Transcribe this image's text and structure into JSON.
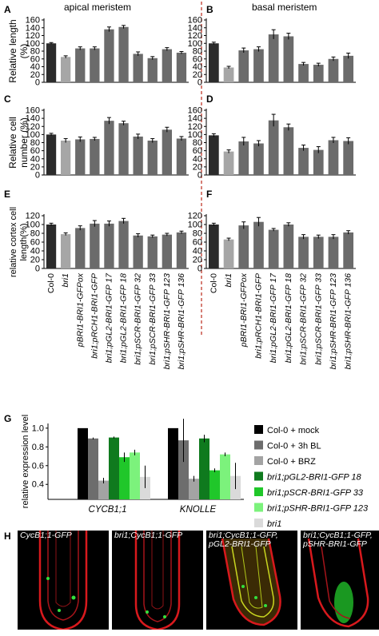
{
  "headers": {
    "apical": "apical meristem",
    "basal": "basal meristem"
  },
  "panel_letters": [
    "A",
    "B",
    "C",
    "D",
    "E",
    "F",
    "G",
    "H"
  ],
  "chart_data": [
    {
      "panel": "A",
      "type": "bar",
      "region": "apical meristem",
      "ylabel": "Relative length (%)",
      "ylim": [
        0,
        160
      ],
      "yticks": [
        0,
        20,
        40,
        60,
        80,
        100,
        120,
        140,
        160
      ],
      "categories": [
        "Col-0",
        "bri1",
        "pBRI1-BRI1-GFPox",
        "bri1;pRCH1-BRI1-GFP",
        "bri1;pGL2-BRI1-GFP 17",
        "bri1;pGL2-BRI1-GFP 18",
        "bri1;pSCR-BRI1-GFP 32",
        "bri1;pSCR-BRI1-GFP 33",
        "bri1;pSHR-BRI1-GFP 123",
        "bri1;pSHR-BRI1-GFP 136"
      ],
      "values": [
        100,
        65,
        87,
        87,
        136,
        142,
        73,
        62,
        85,
        76
      ],
      "errors": [
        2,
        3,
        4,
        4,
        6,
        4,
        5,
        4,
        4,
        3
      ]
    },
    {
      "panel": "B",
      "type": "bar",
      "region": "basal meristem",
      "ylabel": "",
      "ylim": [
        0,
        160
      ],
      "yticks": [
        0,
        20,
        40,
        60,
        80,
        100,
        120,
        140,
        160
      ],
      "categories": [
        "Col-0",
        "bri1",
        "pBRI1-BRI1-GFPox",
        "bri1;pRCH1-BRI1-GFP",
        "bri1;pGL2-BRI1-GFP 17",
        "bri1;pGL2-BRI1-GFP 18",
        "bri1;pSCR-BRI1-GFP 32",
        "bri1;pSCR-BRI1-GFP 33",
        "bri1;pSHR-BRI1-GFP 123",
        "bri1;pSHR-BRI1-GFP 136"
      ],
      "values": [
        100,
        38,
        82,
        85,
        123,
        118,
        47,
        45,
        60,
        68
      ],
      "errors": [
        3,
        3,
        6,
        6,
        12,
        8,
        4,
        4,
        5,
        7
      ]
    },
    {
      "panel": "C",
      "type": "bar",
      "region": "apical meristem",
      "ylabel": "Relative cell number (%)",
      "ylim": [
        0,
        160
      ],
      "yticks": [
        0,
        20,
        40,
        60,
        80,
        100,
        120,
        140,
        160
      ],
      "categories": [
        "Col-0",
        "bri1",
        "pBRI1-BRI1-GFPox",
        "bri1;pRCH1-BRI1-GFP",
        "bri1;pGL2-BRI1-GFP 17",
        "bri1;pGL2-BRI1-GFP 18",
        "bri1;pSCR-BRI1-GFP 32",
        "bri1;pSCR-BRI1-GFP 33",
        "bri1;pSHR-BRI1-GFP 123",
        "bri1;pSHR-BRI1-GFP 136"
      ],
      "values": [
        100,
        85,
        88,
        89,
        134,
        128,
        95,
        85,
        112,
        90
      ],
      "errors": [
        3,
        5,
        6,
        4,
        8,
        5,
        6,
        5,
        6,
        5
      ]
    },
    {
      "panel": "D",
      "type": "bar",
      "region": "basal meristem",
      "ylabel": "",
      "ylim": [
        0,
        160
      ],
      "yticks": [
        0,
        20,
        40,
        60,
        80,
        100,
        120,
        140,
        160
      ],
      "categories": [
        "Col-0",
        "bri1",
        "pBRI1-BRI1-GFPox",
        "bri1;pRCH1-BRI1-GFP",
        "bri1;pGL2-BRI1-GFP 17",
        "bri1;pGL2-BRI1-GFP 18",
        "bri1;pSCR-BRI1-GFP 32",
        "bri1;pSCR-BRI1-GFP 33",
        "bri1;pSHR-BRI1-GFP 123",
        "bri1;pSHR-BRI1-GFP 136"
      ],
      "values": [
        98,
        58,
        83,
        78,
        135,
        118,
        67,
        62,
        86,
        84
      ],
      "errors": [
        4,
        4,
        10,
        7,
        15,
        8,
        7,
        8,
        7,
        8
      ]
    },
    {
      "panel": "E",
      "type": "bar",
      "region": "apical meristem",
      "ylabel": "relative cortex cell length(%)",
      "ylim": [
        0,
        120
      ],
      "yticks": [
        0,
        20,
        40,
        60,
        80,
        100,
        120
      ],
      "categories": [
        "Col-0",
        "bri1",
        "pBRI1-BRI1-GFPox",
        "bri1;pRCH1-BRI1-GFP",
        "bri1;pGL2-BRI1-GFP 17",
        "bri1;pGL2-BRI1-GFP 18",
        "bri1;pSCR-BRI1-GFP 32",
        "bri1;pSCR-BRI1-GFP 33",
        "bri1;pSHR-BRI1-GFP 123",
        "bri1;pSHR-BRI1-GFP 136"
      ],
      "values": [
        100,
        78,
        92,
        102,
        102,
        108,
        75,
        73,
        77,
        82
      ],
      "errors": [
        3,
        3,
        5,
        7,
        6,
        6,
        4,
        3,
        3,
        3
      ]
    },
    {
      "panel": "F",
      "type": "bar",
      "region": "basal meristem",
      "ylabel": "",
      "ylim": [
        0,
        120
      ],
      "yticks": [
        0,
        20,
        40,
        60,
        80,
        100,
        120
      ],
      "categories": [
        "Col-0",
        "bri1",
        "pBRI1-BRI1-GFPox",
        "bri1;pRCH1-BRI1-GFP",
        "bri1;pGL2-BRI1-GFP 17",
        "bri1;pGL2-BRI1-GFP 18",
        "bri1;pSCR-BRI1-GFP 32",
        "bri1;pSCR-BRI1-GFP 33",
        "bri1;pSHR-BRI1-GFP 123",
        "bri1;pSHR-BRI1-GFP 136"
      ],
      "values": [
        100,
        66,
        98,
        106,
        88,
        100,
        72,
        72,
        72,
        82
      ],
      "errors": [
        3,
        3,
        8,
        10,
        3,
        4,
        5,
        4,
        5,
        4
      ]
    },
    {
      "panel": "G",
      "type": "bar",
      "ylabel": "relative expression level",
      "ylim": [
        0,
        1.0
      ],
      "yticks": [
        0.4,
        0.6,
        0.8,
        1.0
      ],
      "categories": [
        "CYCB1;1",
        "KNOLLE"
      ],
      "series": [
        {
          "name": "Col-0 + mock",
          "color": "#000000",
          "values": [
            1.0,
            1.0
          ],
          "errors": [
            0,
            0
          ]
        },
        {
          "name": "Col-0 + 3h BL",
          "color": "#6d6d6d",
          "values": [
            0.89,
            0.87
          ],
          "errors": [
            0.01,
            0.23
          ]
        },
        {
          "name": "Col-0 + BRZ",
          "color": "#a3a3a3",
          "values": [
            0.44,
            0.46
          ],
          "errors": [
            0.03,
            0.03
          ]
        },
        {
          "name": "bri1;pGL2-BRI1-GFP 18",
          "color": "#0f7a1e",
          "values": [
            0.9,
            0.89
          ],
          "errors": [
            0.01,
            0.04
          ]
        },
        {
          "name": "bri1;pSCR-BRI1-GFP 33",
          "color": "#20c72a",
          "values": [
            0.69,
            0.55
          ],
          "errors": [
            0.05,
            0.02
          ]
        },
        {
          "name": "bri1;pSHR-BRI1-GFP 123",
          "color": "#7cf27c",
          "values": [
            0.74,
            0.72
          ],
          "errors": [
            0.03,
            0.02
          ]
        },
        {
          "name": "bri1",
          "color": "#dadada",
          "values": [
            0.48,
            0.49
          ],
          "errors": [
            0.12,
            0.14
          ]
        }
      ]
    }
  ],
  "micrographs": [
    {
      "caption": [
        "CycB1;1-GFP"
      ]
    },
    {
      "caption": [
        "bri1;CycB1;1-GFP"
      ]
    },
    {
      "caption": [
        "bri1;CycB1;1-GFP,",
        "pGL2-BRI1-GFP"
      ]
    },
    {
      "caption": [
        "bri1;CycB1;1-GFP,",
        "pSHR-BRI1-GFP"
      ]
    }
  ]
}
